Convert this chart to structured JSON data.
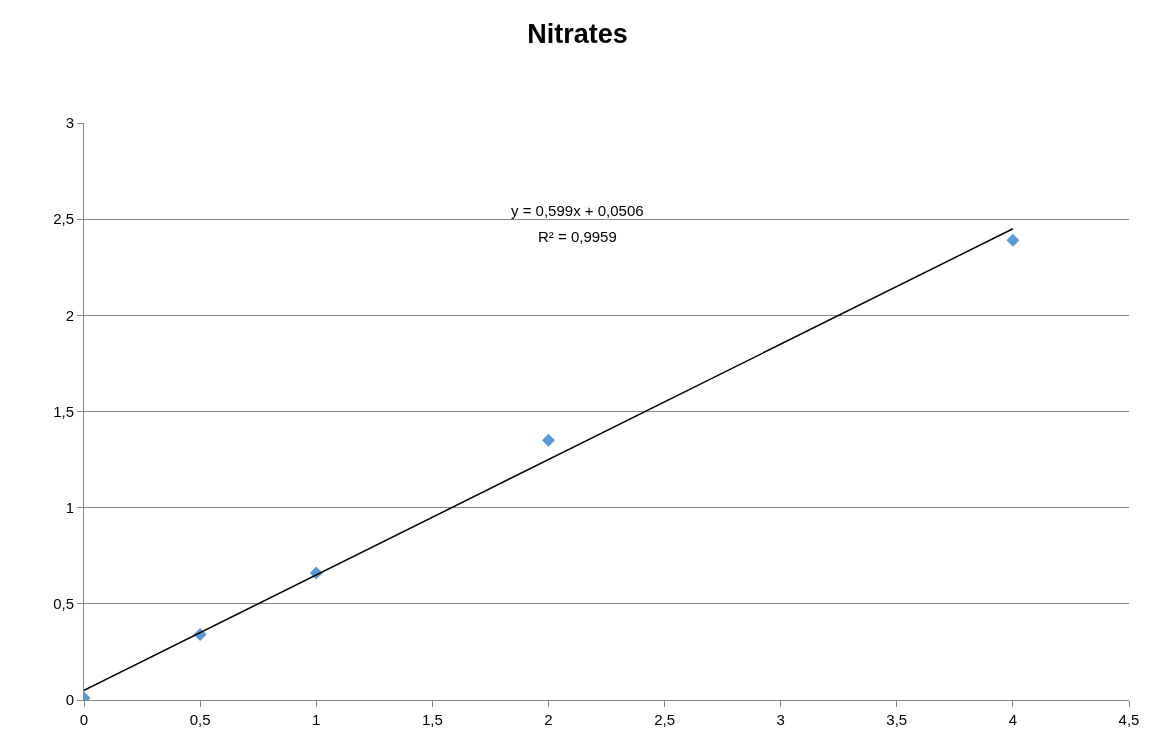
{
  "chart_data": {
    "type": "scatter",
    "title": "Nitrates",
    "series": [
      {
        "color": "#5b9bd5",
        "marker": "diamond",
        "x": [
          0,
          0.5,
          1,
          2,
          4
        ],
        "values": [
          0.01,
          0.34,
          0.66,
          1.35,
          2.39
        ]
      },
      {
        "type": "line",
        "color": "#000000",
        "marker": "none",
        "line_style": "solid",
        "x": [
          0,
          4
        ],
        "values": [
          0.05,
          2.45
        ]
      }
    ],
    "xlim": [
      0,
      4.5
    ],
    "xticks": [
      0,
      {
        "value": 0.5,
        "label": "0,5"
      },
      1,
      {
        "value": 1.5,
        "label": "1,5"
      },
      2,
      {
        "value": 2.5,
        "label": "2,5"
      },
      3,
      {
        "value": 3.5,
        "label": "3,5"
      },
      4,
      {
        "value": 4.5,
        "label": "4,5"
      }
    ],
    "ylim": [
      0,
      3
    ],
    "yticks": [
      0,
      {
        "value": 0.5,
        "label": "0,5"
      },
      1,
      {
        "value": 1.5,
        "label": "1,5"
      },
      2,
      {
        "value": 2.5,
        "label": "2,5"
      },
      3
    ],
    "grid": "y",
    "annotations": [
      "y = 0,599x + 0,0506",
      "R² = 0,9959"
    ]
  }
}
